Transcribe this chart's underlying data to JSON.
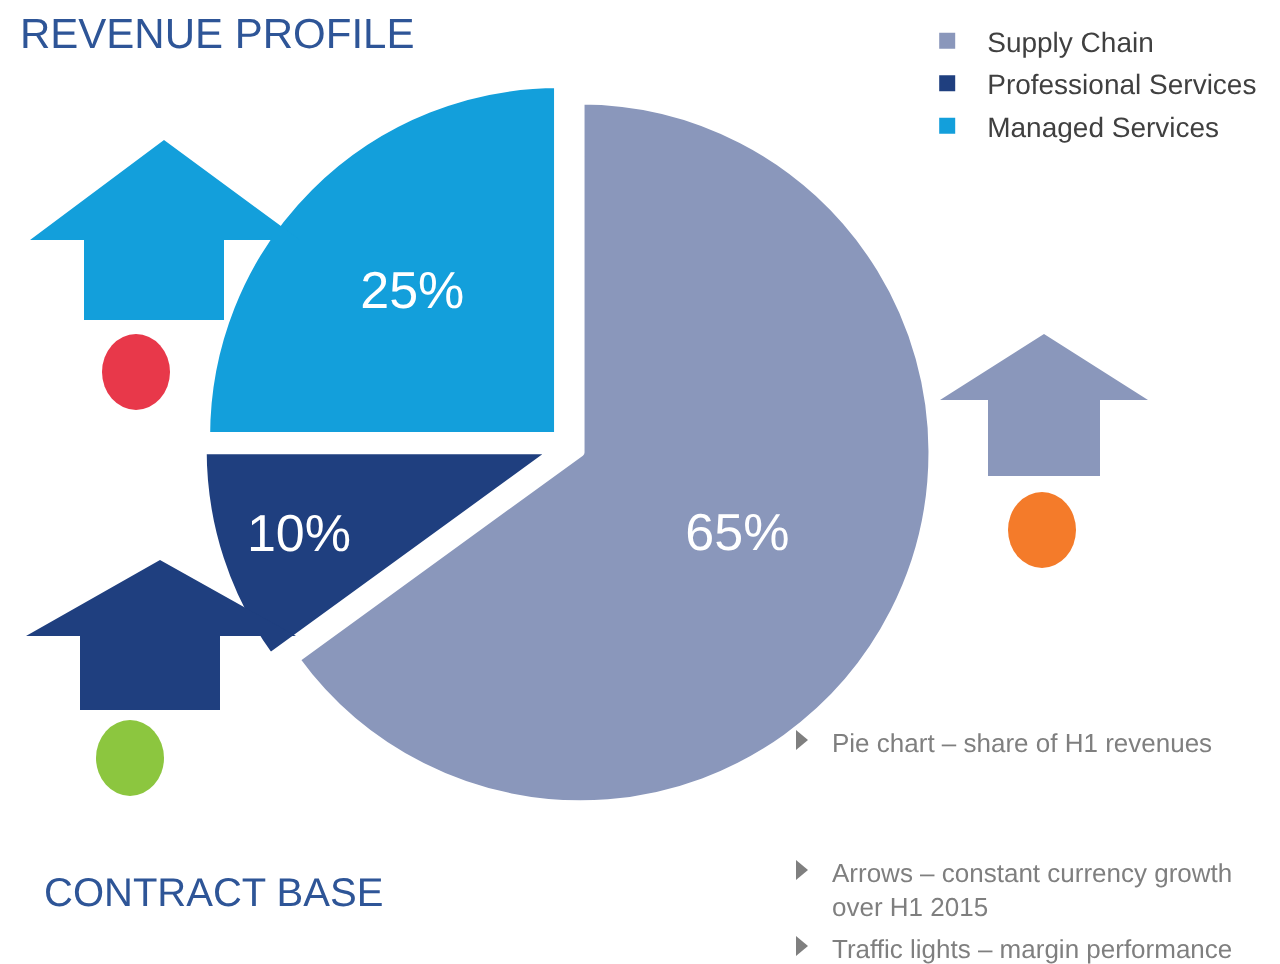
{
  "chart_data": {
    "type": "pie",
    "title": "REVENUE PROFILE",
    "categories": [
      "Supply Chain",
      "Professional Services",
      "Managed Services"
    ],
    "values": [
      65,
      10,
      25
    ],
    "value_labels": [
      "65%",
      "10%",
      "25%"
    ],
    "colors": [
      "#8a97bb",
      "#1f3f7f",
      "#139fdb"
    ],
    "legend": "top right",
    "annotations": [
      "CONTRACT BASE",
      "Pie chart – share of H1 revenues",
      "Arrows – constant currency growth over H1 2015",
      "Traffic lights – margin performance"
    ]
  }
}
